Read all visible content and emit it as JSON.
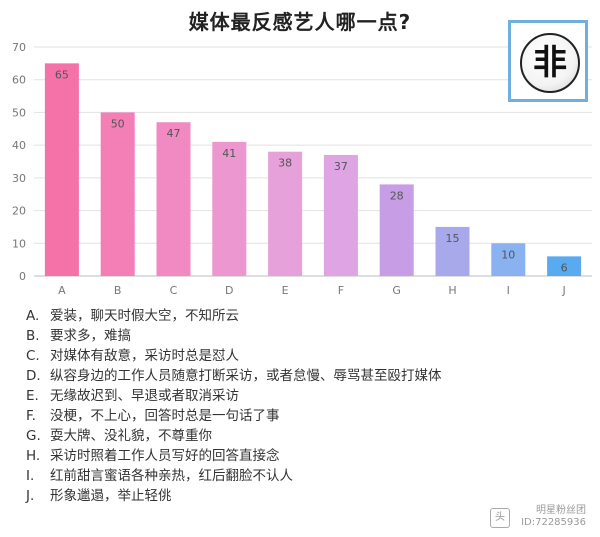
{
  "chart_data": {
    "type": "bar",
    "title": "媒体最反感艺人哪一点?",
    "categories": [
      "A",
      "B",
      "C",
      "D",
      "E",
      "F",
      "G",
      "H",
      "I",
      "J"
    ],
    "values": [
      65,
      50,
      47,
      41,
      38,
      37,
      28,
      15,
      10,
      6
    ],
    "ylim": [
      0,
      70
    ],
    "yticks": [
      0,
      10,
      20,
      30,
      40,
      50,
      60,
      70
    ],
    "xlabel": "",
    "ylabel": "",
    "grid": true,
    "colors": [
      "#f472a8",
      "#f47eb6",
      "#f18ac3",
      "#ec97cf",
      "#e6a0da",
      "#dfa4e4",
      "#c79ee6",
      "#a8a9eb",
      "#8ab2f0",
      "#5aaaf0"
    ]
  },
  "legend": [
    {
      "key": "A.",
      "text": "爱装，聊天时假大空，不知所云"
    },
    {
      "key": "B.",
      "text": "要求多，难搞"
    },
    {
      "key": "C.",
      "text": "对媒体有敌意，采访时总是怼人"
    },
    {
      "key": "D.",
      "text": "纵容身边的工作人员随意打断采访，或者怠慢、辱骂甚至殴打媒体"
    },
    {
      "key": "E.",
      "text": "无缘故迟到、早退或者取消采访"
    },
    {
      "key": "F.",
      "text": "没梗，不上心，回答时总是一句话了事"
    },
    {
      "key": "G.",
      "text": "耍大牌、没礼貌，不尊重你"
    },
    {
      "key": "H.",
      "text": "采访时照着工作人员写好的回答直接念"
    },
    {
      "key": "I.",
      "text": "红前甜言蜜语各种亲热，红后翻脸不认人"
    },
    {
      "key": "J.",
      "text": "形象邋遢，举止轻佻"
    }
  ],
  "logo": {
    "glyph": "非"
  },
  "watermark": {
    "line1": "明星粉丝团",
    "line2": "ID:72285936"
  }
}
